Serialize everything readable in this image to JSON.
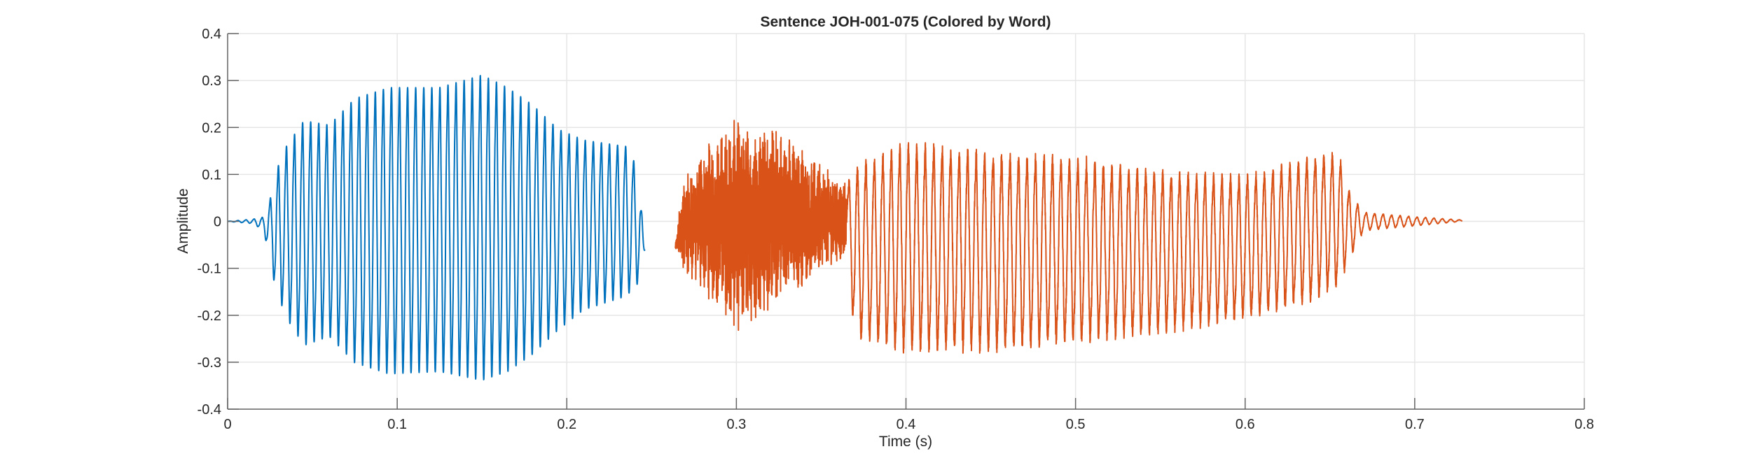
{
  "chart_data": {
    "type": "line",
    "title": "Sentence JOH-001-075 (Colored by Word)",
    "xlabel": "Time (s)",
    "ylabel": "Amplitude",
    "xlim": [
      0,
      0.8
    ],
    "ylim": [
      -0.4,
      0.4
    ],
    "xticks": [
      "0",
      "0.1",
      "0.2",
      "0.3",
      "0.4",
      "0.5",
      "0.6",
      "0.7",
      "0.8"
    ],
    "yticks": [
      "0.4",
      "0.3",
      "0.2",
      "0.1",
      "0",
      "-0.1",
      "-0.2",
      "-0.3",
      "-0.4"
    ],
    "grid": true,
    "series": [
      {
        "color": "#0072BD",
        "t_start": 0.0,
        "t_end": 0.246,
        "pitch_hz": 210,
        "envelope": [
          {
            "t": 0.0,
            "max": 0.0,
            "min": 0.0
          },
          {
            "t": 0.015,
            "max": 0.005,
            "min": -0.005
          },
          {
            "t": 0.021,
            "max": 0.01,
            "min": -0.02
          },
          {
            "t": 0.025,
            "max": 0.05,
            "min": -0.08
          },
          {
            "t": 0.028,
            "max": 0.11,
            "min": -0.15
          },
          {
            "t": 0.035,
            "max": 0.175,
            "min": -0.22
          },
          {
            "t": 0.045,
            "max": 0.23,
            "min": -0.28
          },
          {
            "t": 0.06,
            "max": 0.22,
            "min": -0.26
          },
          {
            "t": 0.075,
            "max": 0.28,
            "min": -0.32
          },
          {
            "t": 0.095,
            "max": 0.305,
            "min": -0.345
          },
          {
            "t": 0.125,
            "max": 0.305,
            "min": -0.34
          },
          {
            "t": 0.15,
            "max": 0.333,
            "min": -0.36
          },
          {
            "t": 0.165,
            "max": 0.305,
            "min": -0.34
          },
          {
            "t": 0.18,
            "max": 0.265,
            "min": -0.3
          },
          {
            "t": 0.195,
            "max": 0.21,
            "min": -0.245
          },
          {
            "t": 0.21,
            "max": 0.185,
            "min": -0.2
          },
          {
            "t": 0.235,
            "max": 0.17,
            "min": -0.17
          },
          {
            "t": 0.242,
            "max": 0.12,
            "min": -0.14
          },
          {
            "t": 0.246,
            "max": -0.06,
            "min": -0.06
          }
        ]
      },
      {
        "color": "#D95319",
        "t_start": 0.264,
        "t_end": 0.728,
        "pitch_hz": 200,
        "noise_segment": [
          0.264,
          0.365
        ],
        "envelope": [
          {
            "t": 0.264,
            "max": -0.05,
            "min": -0.06
          },
          {
            "t": 0.268,
            "max": 0.08,
            "min": -0.1
          },
          {
            "t": 0.28,
            "max": 0.16,
            "min": -0.15
          },
          {
            "t": 0.3,
            "max": 0.22,
            "min": -0.24
          },
          {
            "t": 0.32,
            "max": 0.22,
            "min": -0.2
          },
          {
            "t": 0.345,
            "max": 0.14,
            "min": -0.12
          },
          {
            "t": 0.365,
            "max": 0.08,
            "min": -0.08
          },
          {
            "t": 0.37,
            "max": 0.12,
            "min": -0.25
          },
          {
            "t": 0.4,
            "max": 0.17,
            "min": -0.28
          },
          {
            "t": 0.45,
            "max": 0.15,
            "min": -0.28
          },
          {
            "t": 0.5,
            "max": 0.14,
            "min": -0.26
          },
          {
            "t": 0.55,
            "max": 0.11,
            "min": -0.24
          },
          {
            "t": 0.6,
            "max": 0.1,
            "min": -0.21
          },
          {
            "t": 0.64,
            "max": 0.14,
            "min": -0.17
          },
          {
            "t": 0.655,
            "max": 0.15,
            "min": -0.14
          },
          {
            "t": 0.662,
            "max": 0.06,
            "min": -0.08
          },
          {
            "t": 0.67,
            "max": 0.02,
            "min": -0.02
          },
          {
            "t": 0.7,
            "max": 0.01,
            "min": -0.01
          },
          {
            "t": 0.728,
            "max": 0.003,
            "min": 0.0
          }
        ]
      }
    ]
  }
}
